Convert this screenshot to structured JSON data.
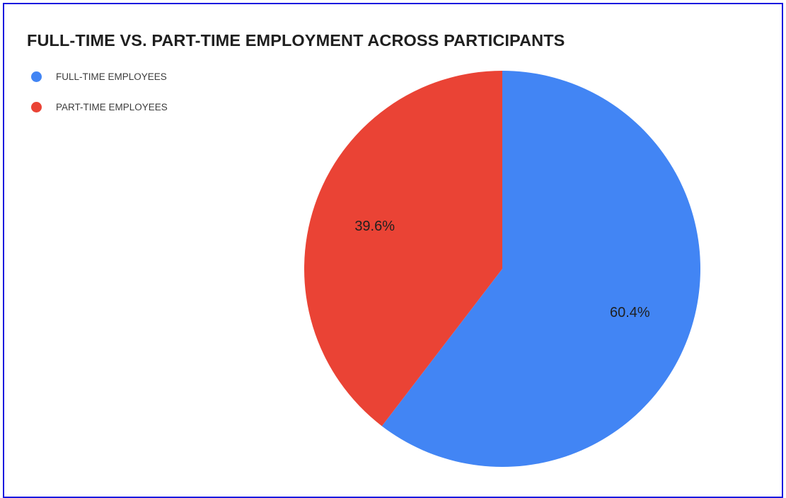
{
  "chart_data": {
    "type": "pie",
    "title": "FULL-TIME VS. PART-TIME EMPLOYMENT ACROSS PARTICIPANTS",
    "legend_position": "top-left",
    "categories": [
      "FULL-TIME EMPLOYEES",
      "PART-TIME EMPLOYEES"
    ],
    "values": [
      60.4,
      39.6
    ],
    "labels": [
      "60.4%",
      "39.6%"
    ],
    "colors": [
      "#4285f4",
      "#ea4335"
    ]
  }
}
